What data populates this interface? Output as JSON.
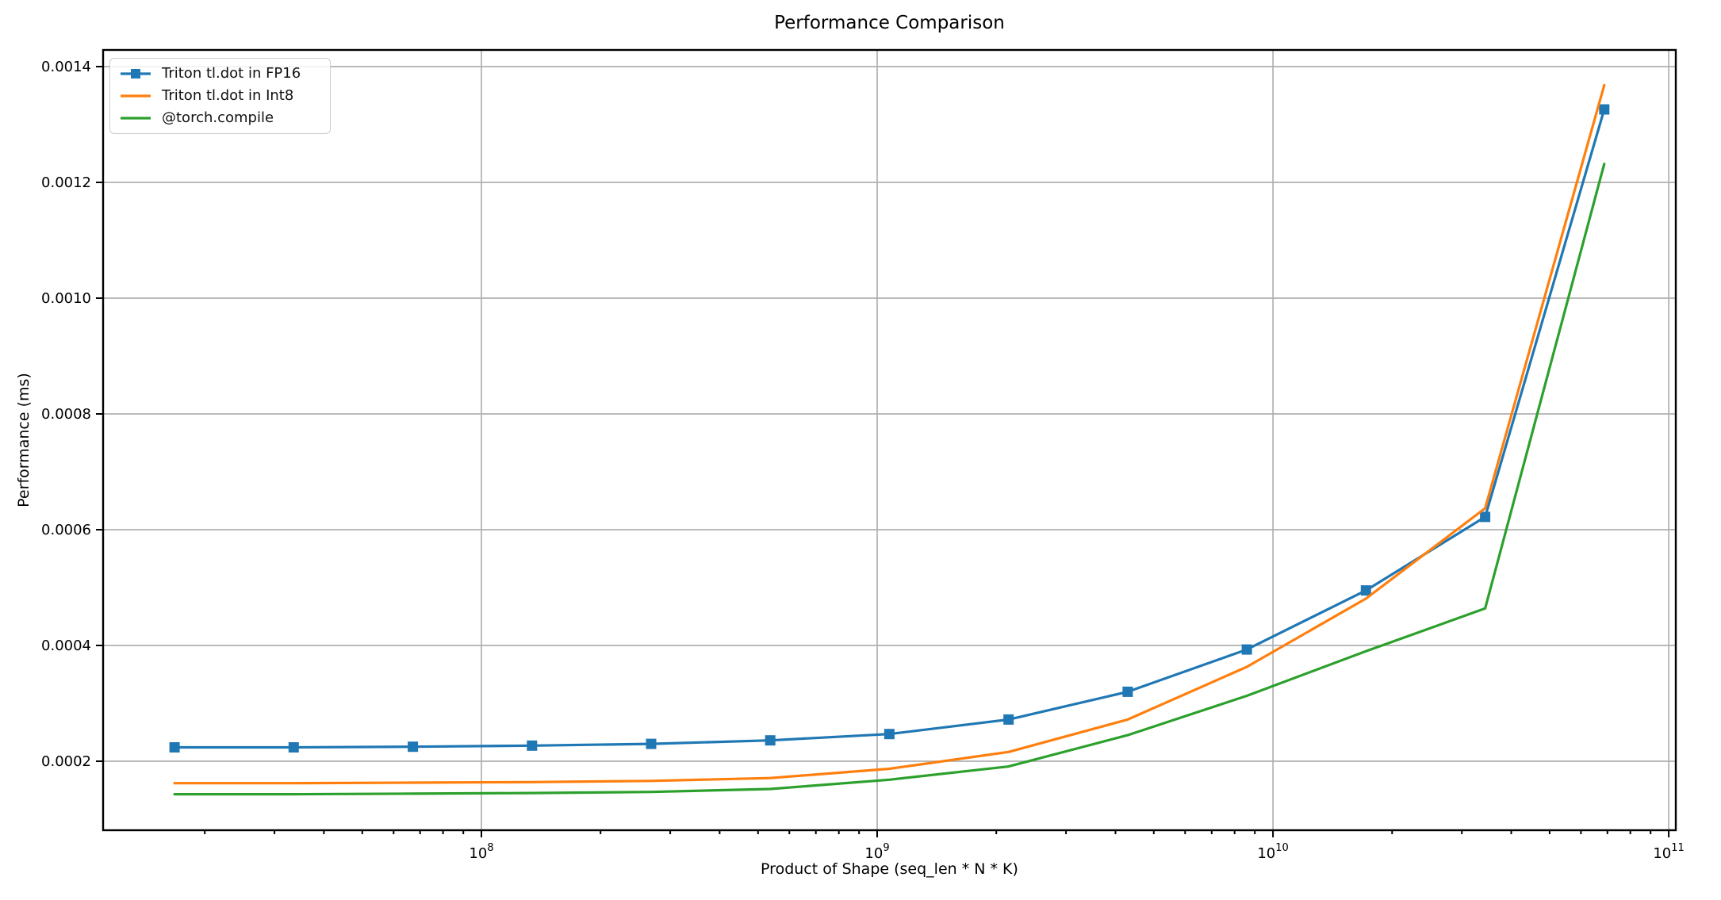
{
  "chart_data": {
    "type": "line",
    "title": "Performance Comparison",
    "xlabel": "Product of Shape (seq_len * N * K)",
    "ylabel": "Performance (ms)",
    "x_scale": "log10",
    "grid": true,
    "legend_position": "upper-left",
    "xlim": [
      11070000,
      104200000000
    ],
    "ylim": [
      8.08e-05,
      0.0014288
    ],
    "x": [
      16777216,
      33554432,
      67108864,
      134217728,
      268435456,
      536870912,
      1073741824,
      2147483648,
      4294967296,
      8589934592,
      17179869184,
      34359738368,
      68719476736
    ],
    "series": [
      {
        "name": "Triton tl.dot in FP16",
        "color": "#1f77b4",
        "marker": "square",
        "values": [
          0.000224,
          0.000224,
          0.000225,
          0.000227,
          0.00023,
          0.000236,
          0.000247,
          0.000272,
          0.00032,
          0.000393,
          0.000495,
          0.000622,
          0.001326
        ]
      },
      {
        "name": "Triton tl.dot in Int8",
        "color": "#ff7f0e",
        "marker": "none",
        "values": [
          0.000162,
          0.000162,
          0.000163,
          0.000164,
          0.000166,
          0.000171,
          0.000187,
          0.000216,
          0.000272,
          0.000363,
          0.000481,
          0.000637,
          0.001368
        ]
      },
      {
        "name": "@torch.compile",
        "color": "#2ca02c",
        "marker": "none",
        "values": [
          0.000143,
          0.000143,
          0.000144,
          0.000145,
          0.000147,
          0.000152,
          0.000168,
          0.000191,
          0.000245,
          0.000313,
          0.00039,
          0.000464,
          0.001232
        ]
      }
    ],
    "yticks": [
      0.0002,
      0.0004,
      0.0006,
      0.0008,
      0.001,
      0.0012,
      0.0014
    ],
    "ytick_labels": [
      "0.0002",
      "0.0004",
      "0.0006",
      "0.0008",
      "0.0010",
      "0.0012",
      "0.0014"
    ],
    "xticks": [
      100000000,
      1000000000,
      10000000000,
      100000000000
    ],
    "xtick_base": "10",
    "xtick_exponents": [
      "8",
      "9",
      "10",
      "11"
    ],
    "colors": {
      "grid": "#b0b0b0",
      "spine": "#000000",
      "background": "#ffffff"
    }
  }
}
